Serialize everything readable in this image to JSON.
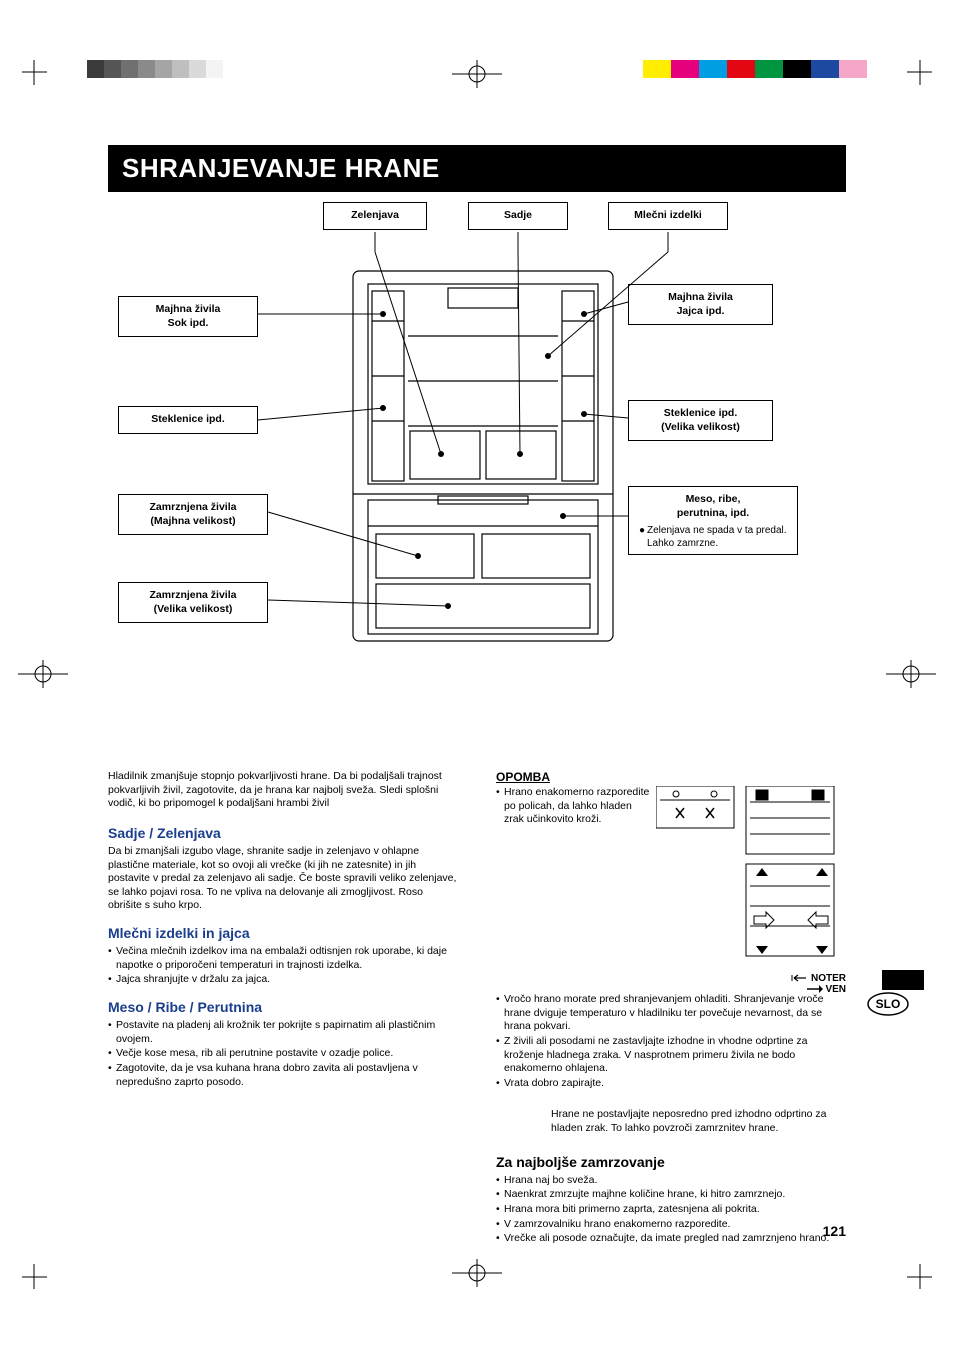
{
  "page_title": "SHRANJEVANJE HRANE",
  "page_number": "121",
  "lang_badge": "SLO",
  "crop_marks": {
    "stroke": "#000000"
  },
  "color_bars": {
    "gray_shades": [
      "#3b3b3b",
      "#555555",
      "#707070",
      "#8a8a8a",
      "#a5a5a5",
      "#bfbfbf",
      "#dadada",
      "#f4f4f4"
    ],
    "colors": [
      "#ffee00",
      "#e5007e",
      "#009fe3",
      "#e30613",
      "#009640",
      "#000000",
      "#1d4aa0",
      "#f6a6c9"
    ]
  },
  "callouts": {
    "vegetables": "Zelenjava",
    "fruit": "Sadje",
    "dairy": "Mlečni izdelki",
    "small_items_juice": "Majhna živila\nSok ipd.",
    "small_items_eggs": "Majhna živila\nJajca ipd.",
    "bottles": "Steklenice ipd.",
    "bottles_large": "Steklenice ipd.\n(Velika velikost)",
    "frozen_small": "Zamrznjena živila\n(Majhna velikost)",
    "frozen_large": "Zamrznjena živila\n(Velika velikost)",
    "meat": {
      "title": "Meso, ribe,\nperutnina, ipd.",
      "note": "Zelenjava ne spada v ta predal. Lahko zamrzne."
    }
  },
  "intro_text": "Hladilnik zmanjšuje stopnjo pokvarljivosti hrane. Da bi podaljšali trajnost pokvarljivih živil, zagotovite, da je hrana kar najbolj sveža. Sledi splošni vodič, ki bo pripomogel k podaljšani hrambi živil",
  "sections": {
    "fruit_veg": {
      "title": "Sadje / Zelenjava",
      "body": "Da bi zmanjšali izgubo vlage, shranite sadje in zelenjavo v ohlapne plastične materiale, kot so ovoji ali vrečke (ki jih ne zatesnite) in jih postavite v predal za zelenjavo ali sadje. Če boste spravili veliko zelenjave, se lahko pojavi rosa. To ne vpliva na delovanje ali zmogljivost. Roso obrišite s suho krpo."
    },
    "dairy_eggs": {
      "title": "Mlečni izdelki in jajca",
      "bullets": [
        "Večina mlečnih izdelkov ima na embalaži odtisnjen rok uporabe, ki daje napotke o priporočeni temperaturi in trajnosti izdelka.",
        "Jajca shranjujte v držalu za jajca."
      ]
    },
    "meat": {
      "title": "Meso / Ribe / Perutnina",
      "bullets": [
        "Postavite na pladenj ali krožnik ter pokrijte s papirnatim ali plastičnim ovojem.",
        "Večje kose mesa, rib ali perutnine postavite v ozadje police.",
        "Zagotovite, da je vsa kuhana hrana dobro zavita ali postavljena v nepredušno zaprto posodo."
      ]
    },
    "note": {
      "title": "OPOMBA",
      "bullets": [
        "Hrano enakomerno razporedite po policah, da lahko hladen zrak učinkovito kroži.",
        "Vročo hrano morate pred shranjevanjem ohladiti. Shranjevanje vroče hrane dviguje temperaturo v hladilniku ter povečuje nevarnost, da se hrana pokvari.",
        "Z živili ali posodami ne zastavljajte izhodne in vhodne odprtine za kroženje hladnega zraka. V nasprotnem primeru živila ne bodo enakomerno ohlajena.",
        "Vrata dobro zapirajte."
      ],
      "key_in": "NOTER",
      "key_out": "VEN",
      "warning": "Hrane ne postavljajte neposredno pred izhodno odprtino za hladen zrak. To lahko povzroči zamrznitev hrane."
    },
    "freezing": {
      "title": "Za najboljše zamrzovanje",
      "bullets": [
        "Hrana naj bo sveža.",
        "Naenkrat zmrzujte majhne količine hrane, ki hitro zamrznejo.",
        "Hrana mora biti primerno zaprta, zatesnjena ali pokrita.",
        "V zamrzovalniku hrano enakomerno razporedite.",
        "Vrečke ali posode označujte, da imate pregled nad zamrznjeno hrano."
      ]
    }
  },
  "fridge_style": {
    "stroke": "#000000",
    "fill": "#ffffff",
    "line_width": 1.2
  }
}
